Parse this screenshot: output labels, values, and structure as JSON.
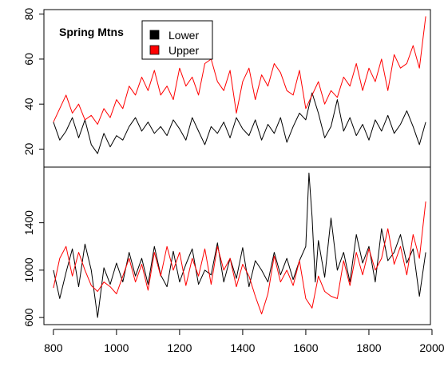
{
  "chart_data": [
    {
      "type": "line",
      "panel": "top",
      "title": "Spring Mtns",
      "ylim": [
        12,
        82
      ],
      "yticks": [
        20,
        40,
        60,
        80
      ],
      "xlim": [
        770,
        1995
      ],
      "legend_position": "top-left",
      "series": [
        {
          "name": "Lower",
          "color": "#000000",
          "x": [
            800,
            820,
            840,
            860,
            880,
            900,
            920,
            940,
            960,
            980,
            1000,
            1020,
            1040,
            1060,
            1080,
            1100,
            1120,
            1140,
            1160,
            1180,
            1200,
            1220,
            1240,
            1260,
            1280,
            1300,
            1320,
            1340,
            1360,
            1380,
            1400,
            1420,
            1440,
            1460,
            1480,
            1500,
            1520,
            1540,
            1560,
            1580,
            1600,
            1620,
            1640,
            1660,
            1680,
            1700,
            1720,
            1740,
            1760,
            1780,
            1800,
            1820,
            1840,
            1860,
            1880,
            1900,
            1920,
            1940,
            1960,
            1980
          ],
          "values": [
            32,
            24,
            28,
            34,
            25,
            33,
            22,
            18,
            27,
            21,
            26,
            24,
            30,
            34,
            28,
            32,
            27,
            30,
            26,
            33,
            29,
            24,
            34,
            28,
            22,
            30,
            27,
            32,
            25,
            34,
            29,
            26,
            33,
            24,
            31,
            27,
            34,
            23,
            30,
            36,
            33,
            45,
            36,
            25,
            30,
            42,
            28,
            34,
            26,
            31,
            24,
            33,
            28,
            35,
            27,
            31,
            37,
            30,
            22,
            32
          ]
        },
        {
          "name": "Upper",
          "color": "#ff0000",
          "x": [
            800,
            820,
            840,
            860,
            880,
            900,
            920,
            940,
            960,
            980,
            1000,
            1020,
            1040,
            1060,
            1080,
            1100,
            1120,
            1140,
            1160,
            1180,
            1200,
            1220,
            1240,
            1260,
            1280,
            1300,
            1320,
            1340,
            1360,
            1380,
            1400,
            1420,
            1440,
            1460,
            1480,
            1500,
            1520,
            1540,
            1560,
            1580,
            1600,
            1620,
            1640,
            1660,
            1680,
            1700,
            1720,
            1740,
            1760,
            1780,
            1800,
            1820,
            1840,
            1860,
            1880,
            1900,
            1920,
            1940,
            1960,
            1980
          ],
          "values": [
            32,
            38,
            44,
            36,
            40,
            33,
            35,
            31,
            38,
            34,
            42,
            38,
            48,
            44,
            52,
            46,
            55,
            44,
            48,
            42,
            56,
            48,
            52,
            44,
            58,
            60,
            50,
            46,
            55,
            36,
            50,
            56,
            42,
            53,
            48,
            58,
            54,
            46,
            44,
            55,
            38,
            44,
            50,
            40,
            46,
            43,
            52,
            48,
            58,
            46,
            56,
            50,
            60,
            46,
            62,
            56,
            58,
            66,
            56,
            79
          ]
        }
      ]
    },
    {
      "type": "line",
      "panel": "bottom",
      "ylim": [
        540,
        1870
      ],
      "yticks": [
        600,
        1000,
        1400
      ],
      "xlim": [
        770,
        1995
      ],
      "xticks": [
        800,
        1000,
        1200,
        1400,
        1600,
        1800,
        2000
      ],
      "series": [
        {
          "name": "Lower",
          "color": "#000000",
          "x": [
            800,
            820,
            840,
            860,
            880,
            900,
            920,
            940,
            960,
            980,
            1000,
            1020,
            1040,
            1060,
            1080,
            1100,
            1120,
            1140,
            1160,
            1180,
            1200,
            1220,
            1240,
            1260,
            1280,
            1300,
            1320,
            1340,
            1360,
            1380,
            1400,
            1420,
            1440,
            1460,
            1480,
            1500,
            1520,
            1540,
            1560,
            1580,
            1600,
            1610,
            1620,
            1630,
            1640,
            1660,
            1680,
            1700,
            1720,
            1740,
            1760,
            1780,
            1800,
            1820,
            1840,
            1860,
            1880,
            1900,
            1920,
            1940,
            1960,
            1980
          ],
          "values": [
            1000,
            760,
            980,
            1180,
            860,
            1220,
            1000,
            600,
            1020,
            880,
            1060,
            900,
            1150,
            950,
            1100,
            880,
            1200,
            960,
            860,
            1160,
            900,
            1050,
            1180,
            880,
            1000,
            960,
            1230,
            900,
            1100,
            930,
            1190,
            860,
            1080,
            1000,
            900,
            1150,
            960,
            1100,
            920,
            1080,
            1200,
            1820,
            1450,
            900,
            1250,
            940,
            1440,
            1000,
            1150,
            900,
            1300,
            1060,
            1200,
            900,
            1350,
            1080,
            1150,
            1300,
            1060,
            1180,
            780,
            1150
          ]
        },
        {
          "name": "Upper",
          "color": "#ff0000",
          "x": [
            800,
            820,
            840,
            860,
            880,
            900,
            920,
            940,
            960,
            980,
            1000,
            1020,
            1040,
            1060,
            1080,
            1100,
            1120,
            1140,
            1160,
            1180,
            1200,
            1220,
            1240,
            1260,
            1280,
            1300,
            1320,
            1340,
            1360,
            1380,
            1400,
            1420,
            1440,
            1460,
            1480,
            1500,
            1520,
            1540,
            1560,
            1580,
            1600,
            1620,
            1640,
            1660,
            1680,
            1700,
            1720,
            1740,
            1760,
            1780,
            1800,
            1820,
            1840,
            1860,
            1880,
            1900,
            1920,
            1940,
            1960,
            1980
          ],
          "values": [
            850,
            1100,
            1200,
            950,
            1150,
            1000,
            870,
            820,
            900,
            860,
            800,
            950,
            1100,
            900,
            1050,
            830,
            1150,
            950,
            1200,
            1000,
            1150,
            870,
            1100,
            950,
            1180,
            880,
            1200,
            1000,
            1100,
            860,
            1050,
            950,
            780,
            630,
            800,
            1120,
            900,
            1000,
            870,
            1080,
            760,
            680,
            950,
            820,
            780,
            760,
            1080,
            870,
            1150,
            960,
            1180,
            1000,
            1100,
            1350,
            1050,
            1200,
            960,
            1300,
            1100,
            1580
          ]
        }
      ]
    }
  ]
}
